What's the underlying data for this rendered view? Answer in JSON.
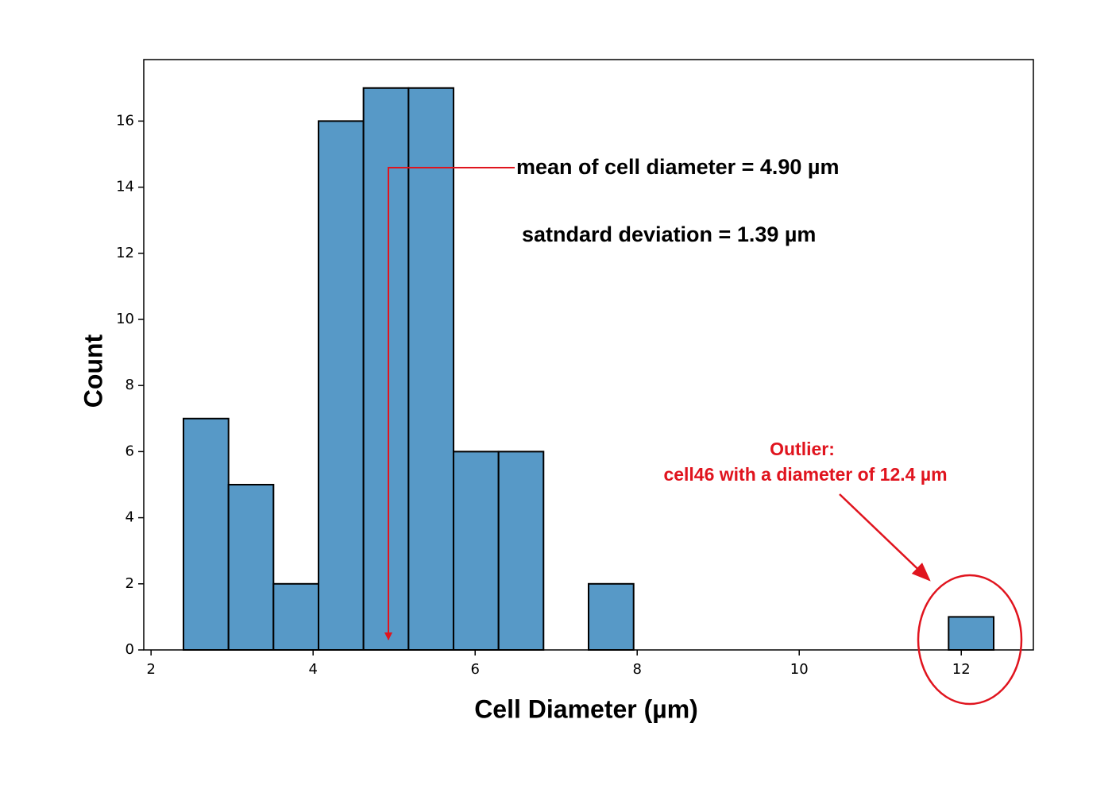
{
  "chart_data": {
    "type": "histogram",
    "xlabel": "Cell Diameter (µm)",
    "ylabel": "Count",
    "bins": [
      2.4,
      2.956,
      3.511,
      4.067,
      4.622,
      5.178,
      5.733,
      6.289,
      6.844,
      7.4,
      7.956,
      8.511,
      9.067,
      9.622,
      10.178,
      10.733,
      11.289,
      11.844,
      12.4
    ],
    "counts": [
      7,
      5,
      2,
      16,
      17,
      17,
      6,
      6,
      0,
      2,
      0,
      0,
      0,
      0,
      0,
      0,
      0,
      1
    ],
    "color": "#5799c7",
    "xlim": [
      1.91,
      12.89
    ],
    "xticks": [
      2,
      4,
      6,
      8,
      10,
      12
    ],
    "ylim": [
      0,
      17.86
    ],
    "yticks": [
      0,
      2,
      4,
      6,
      8,
      10,
      12,
      14,
      16
    ],
    "annotations": [
      "mean of cell diameter = 4.90 µm",
      "satndard deviation = 1.39 µm",
      "Outlier:",
      "cell46 with a diameter of 12.4 µm"
    ]
  }
}
